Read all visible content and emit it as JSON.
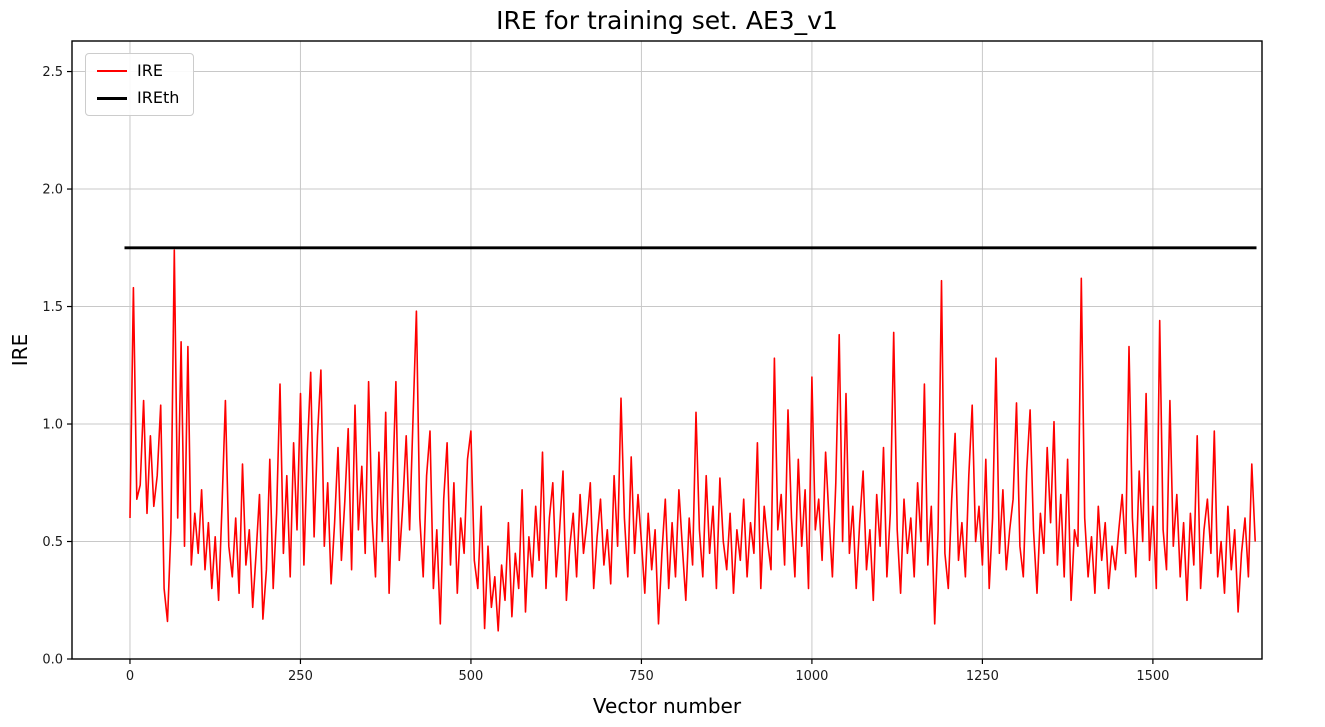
{
  "figure": {
    "title": "IRE for training set. AE3_v1",
    "xlabel": "Vector number",
    "ylabel": "IRE"
  },
  "legend": {
    "items": [
      {
        "label": "IRE",
        "color": "#ff0000",
        "sample_thickness": 2
      },
      {
        "label": "IREth",
        "color": "#000000",
        "sample_thickness": 3
      }
    ]
  },
  "chart_data": {
    "type": "line",
    "title": "IRE for training set. AE3_v1",
    "xlabel": "Vector number",
    "ylabel": "IRE",
    "xlim": [
      -85,
      1660
    ],
    "ylim": [
      0,
      2.63
    ],
    "xticks": [
      0,
      250,
      500,
      750,
      1000,
      1250,
      1500
    ],
    "xtick_labels": [
      "0",
      "250",
      "500",
      "750",
      "1000",
      "1250",
      "1500"
    ],
    "yticks": [
      0.0,
      0.5,
      1.0,
      1.5,
      2.0,
      2.5
    ],
    "ytick_labels": [
      "0.0",
      "0.5",
      "1.0",
      "1.5",
      "2.0",
      "2.5"
    ],
    "grid": true,
    "grid_color": "#c8c8c8",
    "legend_position": "upper-left",
    "threshold_value": 1.75,
    "series": [
      {
        "name": "IRE",
        "color": "#ff0000",
        "line_width": 1.6,
        "x_start": 0,
        "x_step": 5,
        "values": [
          0.6,
          1.58,
          0.68,
          0.74,
          1.1,
          0.62,
          0.95,
          0.65,
          0.78,
          1.08,
          0.3,
          0.16,
          0.55,
          1.74,
          0.6,
          1.35,
          0.48,
          1.33,
          0.4,
          0.62,
          0.45,
          0.72,
          0.38,
          0.58,
          0.3,
          0.52,
          0.25,
          0.65,
          1.1,
          0.48,
          0.35,
          0.6,
          0.28,
          0.83,
          0.4,
          0.55,
          0.22,
          0.45,
          0.7,
          0.17,
          0.38,
          0.85,
          0.3,
          0.62,
          1.17,
          0.45,
          0.78,
          0.35,
          0.92,
          0.55,
          1.13,
          0.4,
          0.88,
          1.22,
          0.52,
          0.95,
          1.23,
          0.48,
          0.75,
          0.32,
          0.58,
          0.9,
          0.42,
          0.67,
          0.98,
          0.38,
          1.08,
          0.55,
          0.82,
          0.45,
          1.18,
          0.6,
          0.35,
          0.88,
          0.5,
          1.05,
          0.28,
          0.72,
          1.18,
          0.42,
          0.65,
          0.95,
          0.55,
          1.02,
          1.48,
          0.6,
          0.35,
          0.78,
          0.97,
          0.3,
          0.55,
          0.15,
          0.68,
          0.92,
          0.4,
          0.75,
          0.28,
          0.6,
          0.45,
          0.85,
          0.97,
          0.42,
          0.3,
          0.65,
          0.13,
          0.48,
          0.22,
          0.35,
          0.12,
          0.4,
          0.25,
          0.58,
          0.18,
          0.45,
          0.3,
          0.72,
          0.2,
          0.52,
          0.35,
          0.65,
          0.42,
          0.88,
          0.3,
          0.6,
          0.75,
          0.35,
          0.55,
          0.8,
          0.25,
          0.48,
          0.62,
          0.35,
          0.7,
          0.45,
          0.58,
          0.75,
          0.3,
          0.52,
          0.68,
          0.4,
          0.55,
          0.32,
          0.78,
          0.48,
          1.11,
          0.6,
          0.35,
          0.86,
          0.45,
          0.7,
          0.5,
          0.28,
          0.62,
          0.38,
          0.55,
          0.15,
          0.45,
          0.68,
          0.3,
          0.58,
          0.35,
          0.72,
          0.48,
          0.25,
          0.6,
          0.4,
          1.05,
          0.55,
          0.35,
          0.78,
          0.45,
          0.65,
          0.3,
          0.77,
          0.5,
          0.38,
          0.62,
          0.28,
          0.55,
          0.42,
          0.68,
          0.35,
          0.58,
          0.45,
          0.92,
          0.3,
          0.65,
          0.5,
          0.38,
          1.28,
          0.55,
          0.7,
          0.4,
          1.06,
          0.6,
          0.35,
          0.85,
          0.48,
          0.72,
          0.3,
          1.2,
          0.55,
          0.68,
          0.42,
          0.88,
          0.6,
          0.35,
          0.75,
          1.38,
          0.5,
          1.13,
          0.45,
          0.65,
          0.3,
          0.58,
          0.8,
          0.38,
          0.55,
          0.25,
          0.7,
          0.48,
          0.9,
          0.35,
          0.62,
          1.39,
          0.55,
          0.28,
          0.68,
          0.45,
          0.6,
          0.35,
          0.75,
          0.5,
          1.17,
          0.4,
          0.65,
          0.15,
          0.55,
          1.61,
          0.45,
          0.3,
          0.68,
          0.96,
          0.42,
          0.58,
          0.35,
          0.78,
          1.08,
          0.5,
          0.65,
          0.4,
          0.85,
          0.3,
          0.6,
          1.28,
          0.45,
          0.72,
          0.38,
          0.55,
          0.68,
          1.09,
          0.48,
          0.35,
          0.8,
          1.06,
          0.55,
          0.28,
          0.62,
          0.45,
          0.9,
          0.58,
          1.01,
          0.4,
          0.7,
          0.35,
          0.85,
          0.25,
          0.55,
          0.48,
          1.62,
          0.6,
          0.35,
          0.52,
          0.28,
          0.65,
          0.42,
          0.58,
          0.3,
          0.48,
          0.38,
          0.55,
          0.7,
          0.45,
          1.33,
          0.6,
          0.35,
          0.8,
          0.5,
          1.13,
          0.42,
          0.65,
          0.3,
          1.44,
          0.55,
          0.38,
          1.1,
          0.48,
          0.7,
          0.35,
          0.58,
          0.25,
          0.62,
          0.4,
          0.95,
          0.3,
          0.55,
          0.68,
          0.45,
          0.97,
          0.35,
          0.5,
          0.28,
          0.65,
          0.38,
          0.55,
          0.2,
          0.45,
          0.6,
          0.35,
          0.83,
          0.5
        ]
      },
      {
        "name": "IREth",
        "color": "#000000",
        "line_width": 2.8,
        "x": [
          -8,
          1652
        ],
        "values": [
          1.75,
          1.75
        ]
      }
    ]
  }
}
